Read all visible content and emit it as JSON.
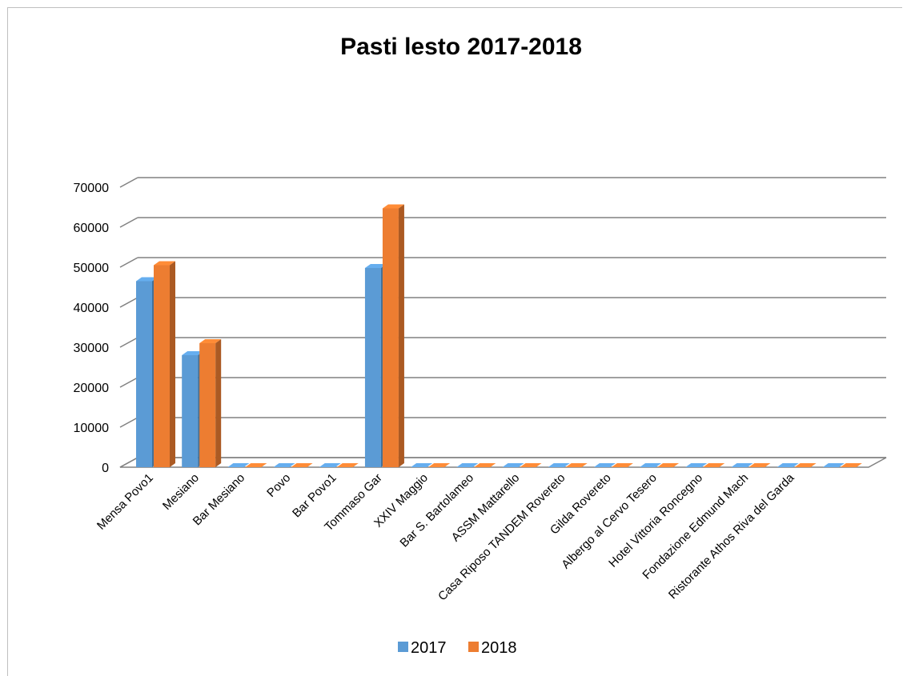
{
  "chart_data": {
    "type": "bar",
    "title": "Pasti lesto 2017-2018",
    "categories": [
      "Mensa Povo1",
      "Mesiano",
      "Bar Mesiano",
      "Povo",
      "Bar Povo1",
      "Tommaso Gar",
      "XXIV Maggio",
      "Bar S. Bartolameo",
      "ASSM Mattarello",
      "Casa Riposo TANDEM Rovereto",
      "Gilda Rovereto",
      "Albergo al Cervo Tesero",
      "Hotel Vittoria Roncegno",
      "Fondazione  Edmund Mach",
      "Ristorante Athos Riva del Garda",
      ""
    ],
    "series": [
      {
        "name": "2017",
        "color": "#5b9bd5",
        "values": [
          46500,
          28000,
          0,
          0,
          0,
          49800,
          0,
          0,
          0,
          0,
          0,
          0,
          0,
          0,
          0,
          0
        ]
      },
      {
        "name": "2018",
        "color": "#ed7d31",
        "values": [
          50500,
          31000,
          0,
          0,
          0,
          64700,
          0,
          0,
          0,
          0,
          0,
          0,
          0,
          0,
          0,
          0
        ]
      }
    ],
    "yticks": [
      "0",
      "10000",
      "20000",
      "30000",
      "40000",
      "50000",
      "60000",
      "70000"
    ],
    "ylim": [
      0,
      70000
    ],
    "grid": true,
    "legend_position": "bottom"
  }
}
